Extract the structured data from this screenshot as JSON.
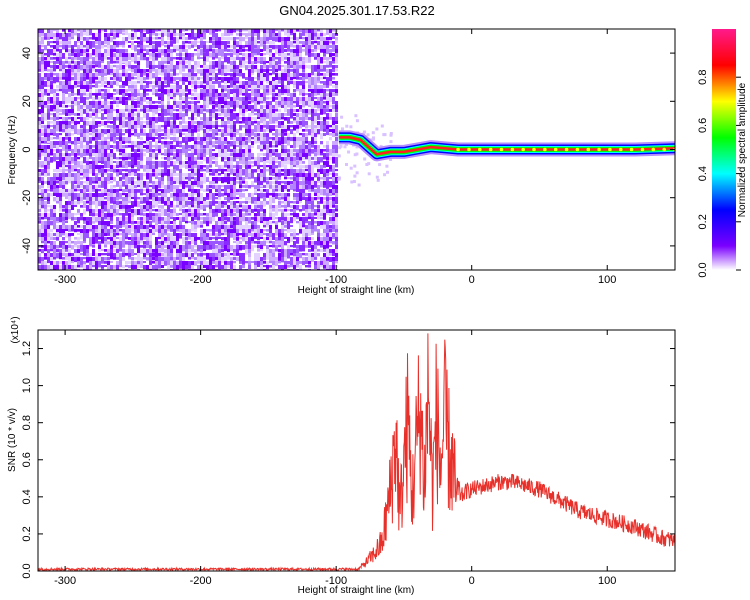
{
  "title": "GN04.2025.301.17.53.R22",
  "chart_data": [
    {
      "type": "heatmap",
      "xlabel": "Height of straight line (km)",
      "ylabel": "Frequency (Hz)",
      "xlim": [
        -320,
        150
      ],
      "ylim": [
        -50,
        50
      ],
      "xticks": [
        -300,
        -200,
        -100,
        0,
        100
      ],
      "yticks": [
        -40,
        -20,
        0,
        20,
        40
      ],
      "colorbar": {
        "label": "Normalized spectral amplitude",
        "range": [
          0.0,
          1.0
        ],
        "ticks": [
          0.0,
          0.2,
          0.4,
          0.6,
          0.8
        ],
        "tick_labels": [
          "0.0",
          "0.2",
          "0.4",
          "0.6",
          "0.8"
        ],
        "colormap": [
          "#ffffff",
          "#7a00ff",
          "#0000ff",
          "#00ffff",
          "#00ff00",
          "#ffff00",
          "#ff0000",
          "#ff1a8c"
        ]
      },
      "regions": [
        {
          "x_range": [
            -320,
            -100
          ],
          "freq_range": [
            -50,
            50
          ],
          "amplitude": "noise, 0.0-0.3"
        },
        {
          "x_range": [
            -100,
            150
          ],
          "freq_range": [
            -50,
            50
          ],
          "amplitude": "0.0 outside signal band"
        }
      ],
      "signal_track": [
        {
          "x": -98,
          "freq": 5
        },
        {
          "x": -90,
          "freq": 5
        },
        {
          "x": -82,
          "freq": 4
        },
        {
          "x": -76,
          "freq": 1
        },
        {
          "x": -70,
          "freq": -2
        },
        {
          "x": -60,
          "freq": -1
        },
        {
          "x": -50,
          "freq": -1
        },
        {
          "x": -40,
          "freq": 0
        },
        {
          "x": -30,
          "freq": 1
        },
        {
          "x": -20,
          "freq": 0.5
        },
        {
          "x": -10,
          "freq": 0
        },
        {
          "x": 0,
          "freq": 0
        },
        {
          "x": 20,
          "freq": 0
        },
        {
          "x": 40,
          "freq": 0
        },
        {
          "x": 60,
          "freq": 0
        },
        {
          "x": 80,
          "freq": 0
        },
        {
          "x": 100,
          "freq": 0
        },
        {
          "x": 120,
          "freq": 0
        },
        {
          "x": 150,
          "freq": 0.5
        }
      ]
    },
    {
      "type": "line",
      "xlabel": "Height of straight line (km)",
      "ylabel": "SNR (10 * v/v)",
      "y_multiplier": "(x10⁴)",
      "xlim": [
        -320,
        150
      ],
      "ylim": [
        0,
        1.3
      ],
      "xticks": [
        -300,
        -200,
        -100,
        0,
        100
      ],
      "yticks": [
        0.0,
        0.2,
        0.4,
        0.6,
        0.8,
        1.0,
        1.2
      ],
      "ytick_labels": [
        "0.0",
        "0.2",
        "0.4",
        "0.6",
        "0.8",
        "1.0",
        "1.2"
      ],
      "color": "#e8302a",
      "x": [
        -320,
        -300,
        -250,
        -200,
        -150,
        -100,
        -84,
        -78,
        -72,
        -66,
        -60,
        -56,
        -53,
        -50,
        -47,
        -44,
        -41,
        -38,
        -35,
        -32,
        -29,
        -26,
        -23,
        -20,
        -17,
        -14,
        -11,
        -8,
        -4,
        0,
        10,
        20,
        30,
        40,
        50,
        60,
        70,
        80,
        90,
        100,
        110,
        120,
        130,
        140,
        150
      ],
      "y": [
        0.01,
        0.01,
        0.01,
        0.01,
        0.01,
        0.01,
        0.01,
        0.06,
        0.12,
        0.2,
        0.55,
        0.95,
        0.4,
        0.75,
        1.05,
        0.5,
        0.85,
        1.15,
        0.6,
        1.3,
        0.55,
        1.1,
        0.7,
        1.05,
        0.85,
        0.7,
        0.5,
        0.4,
        0.43,
        0.44,
        0.46,
        0.48,
        0.48,
        0.46,
        0.44,
        0.4,
        0.36,
        0.32,
        0.3,
        0.28,
        0.26,
        0.24,
        0.21,
        0.18,
        0.16
      ]
    }
  ]
}
